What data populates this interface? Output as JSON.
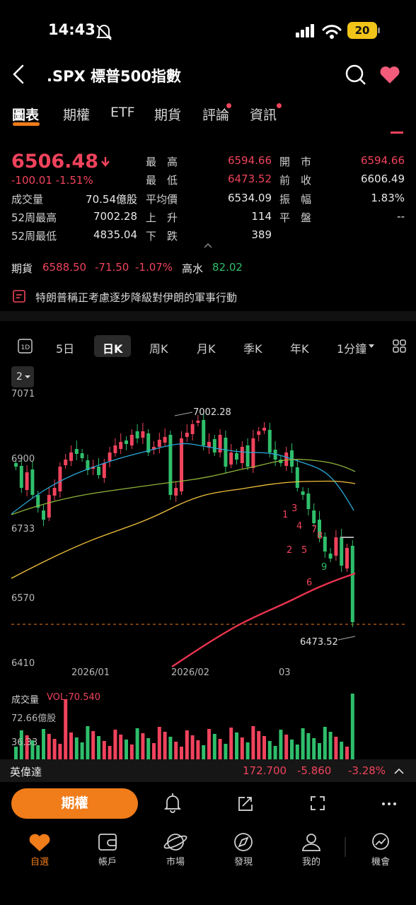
{
  "status_bar": {
    "time": "14:43",
    "battery": "20"
  },
  "header": {
    "title": ".SPX  標普500指數"
  },
  "tabs": [
    "圖表",
    "期權",
    "ETF",
    "期貨",
    "評論",
    "資訊"
  ],
  "quote": {
    "price": "6506.48",
    "change": "-100.01  -1.51%",
    "rows": [
      {
        "l1": "最　高",
        "v1": "6594.66",
        "l2": "開　市",
        "v2": "6594.66"
      },
      {
        "l1": "最　低",
        "v1": "6473.52",
        "l2": "前　收",
        "v2": "6606.49"
      },
      {
        "l1": "平均價",
        "v1": "6534.09",
        "l2": "振　幅",
        "v2": "1.83%"
      },
      {
        "l1": "上　升",
        "v1": "114",
        "l2": "平　盤",
        "v2": "--"
      },
      {
        "l1": "下　跌",
        "v1": "389"
      }
    ],
    "left_rows": [
      {
        "label": "成交量",
        "value": "70.54億股"
      },
      {
        "label": "52周最高",
        "value": "7002.28"
      },
      {
        "label": "52周最低",
        "value": "4835.04"
      }
    ]
  },
  "futures": {
    "label": "期貨",
    "price": "6588.50",
    "change": "-71.50",
    "pct": "-1.07%",
    "premium_label": "高水",
    "premium": "82.02"
  },
  "news": {
    "text": "特朗普稱正考慮逐步降級對伊朗的軍事行動"
  },
  "periods": [
    "5日",
    "日K",
    "周K",
    "月K",
    "季K",
    "年K",
    "1分鐘"
  ],
  "subchart_button": "2",
  "chart": {
    "y_ticks": [
      "7071",
      "6900",
      "6733",
      "6570",
      "6410"
    ],
    "x_ticks": [
      "2026/01",
      "2026/02",
      "03"
    ],
    "high_label": "7002.28",
    "low_label": "6473.52",
    "markers": [
      "1",
      "2",
      "3",
      "4",
      "5",
      "6",
      "7",
      "8",
      "9"
    ]
  },
  "volume": {
    "title": "成交量",
    "value": "VOL:70.540",
    "ticks": [
      "72.66億股",
      "36.33"
    ]
  },
  "bottom_ticker": {
    "name": "英偉達",
    "price": "172.700",
    "change": "-5.860",
    "pct": "-3.28%"
  },
  "action_bar": {
    "options_label": "期權"
  },
  "tab_bar": [
    "自選",
    "帳戶",
    "市場",
    "發現",
    "我的",
    "機會"
  ],
  "colors": {
    "up": "#f0435c",
    "down": "#2fbe6b",
    "accent": "#f07c1a",
    "ma_blue": "#2aa7d8",
    "ma_green": "#8fb53a",
    "ma_yellow": "#f2c13a",
    "ma_red": "#e8334f"
  }
}
